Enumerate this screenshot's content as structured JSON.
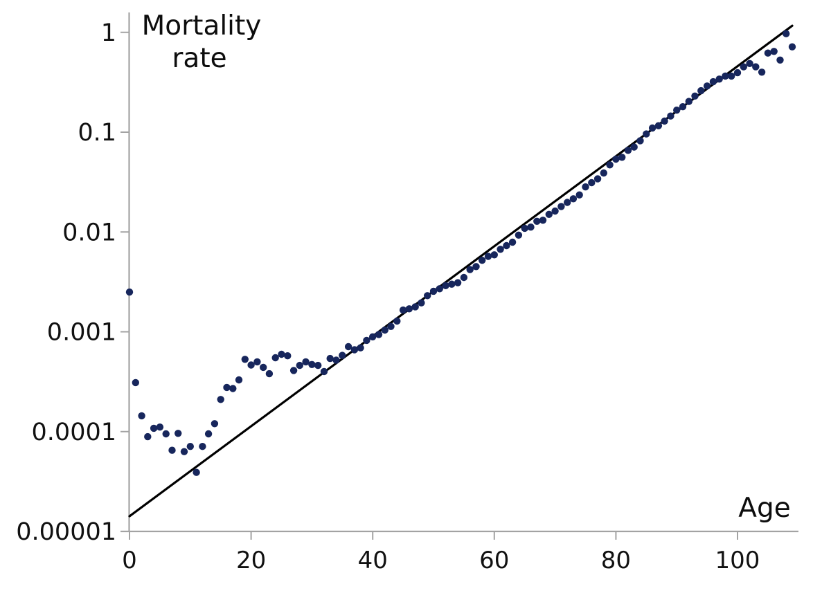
{
  "page": {
    "y_axis_title_line1": "Mortality",
    "y_axis_title_line2": "rate",
    "x_axis_label": "Age"
  },
  "colors": {
    "dot": "#17265c",
    "trend_line": "#000000",
    "axis": "#a3a3a3",
    "text": "#111111",
    "background": "#ffffff"
  },
  "chart_data": {
    "type": "scatter",
    "title": "Mortality rate",
    "xlabel": "Age",
    "ylabel": "Mortality rate",
    "x_scale": "linear",
    "y_scale": "log10",
    "xlim": [
      0,
      113
    ],
    "ylim": [
      1e-05,
      1.3
    ],
    "grid": false,
    "legend": false,
    "x_ticks": [
      0,
      20,
      40,
      60,
      80,
      100
    ],
    "y_ticks": [
      {
        "label": "1",
        "value": 1
      },
      {
        "label": "0.1",
        "value": 0.1
      },
      {
        "label": "0.01",
        "value": 0.01
      },
      {
        "label": "0.001",
        "value": 0.001
      },
      {
        "label": "0.0001",
        "value": 0.0001
      },
      {
        "label": "0.00001",
        "value": 1e-05
      }
    ],
    "series": [
      {
        "name": "mortality-rate-by-age",
        "type": "scatter",
        "color": "#17265c",
        "marker_radius": 5.2,
        "ages": [
          0,
          1,
          2,
          3,
          4,
          5,
          6,
          7,
          8,
          9,
          10,
          11,
          12,
          13,
          14,
          15,
          16,
          17,
          18,
          19,
          20,
          21,
          22,
          23,
          24,
          25,
          26,
          27,
          28,
          29,
          30,
          31,
          32,
          33,
          34,
          35,
          36,
          37,
          38,
          39,
          40,
          41,
          42,
          43,
          44,
          45,
          46,
          47,
          48,
          49,
          50,
          51,
          52,
          53,
          54,
          55,
          56,
          57,
          58,
          59,
          60,
          61,
          62,
          63,
          64,
          65,
          66,
          67,
          68,
          69,
          70,
          71,
          72,
          73,
          74,
          75,
          76,
          77,
          78,
          79,
          80,
          81,
          82,
          83,
          84,
          85,
          86,
          87,
          88,
          89,
          90,
          91,
          92,
          93,
          94,
          95,
          96,
          97,
          98,
          99,
          100,
          101,
          102,
          103,
          104,
          105,
          106,
          107,
          108,
          109
        ],
        "values": [
          0.0025,
          0.00031,
          0.000144,
          8.9e-05,
          0.000108,
          0.000111,
          9.5e-05,
          6.5e-05,
          9.6e-05,
          6.3e-05,
          7.1e-05,
          3.9e-05,
          7.1e-05,
          9.5e-05,
          0.00012,
          0.00021,
          0.000277,
          0.00027,
          0.00033,
          0.00053,
          0.000465,
          0.0005,
          0.00044,
          0.00038,
          0.00055,
          0.000595,
          0.000575,
          0.00041,
          0.00046,
          0.0005,
          0.00047,
          0.00046,
          0.0004,
          0.00054,
          0.00052,
          0.00058,
          0.00071,
          0.00066,
          0.00069,
          0.00082,
          0.00089,
          0.00094,
          0.00104,
          0.00113,
          0.00128,
          0.00165,
          0.0017,
          0.00178,
          0.00195,
          0.0023,
          0.00255,
          0.0027,
          0.0029,
          0.003,
          0.0031,
          0.0035,
          0.0042,
          0.0045,
          0.0052,
          0.0057,
          0.0059,
          0.0067,
          0.0073,
          0.0079,
          0.0093,
          0.0109,
          0.0112,
          0.0128,
          0.0131,
          0.015,
          0.0162,
          0.018,
          0.0198,
          0.0215,
          0.0235,
          0.0283,
          0.0312,
          0.0341,
          0.039,
          0.047,
          0.0537,
          0.056,
          0.0657,
          0.071,
          0.082,
          0.096,
          0.11,
          0.116,
          0.129,
          0.145,
          0.166,
          0.18,
          0.203,
          0.23,
          0.26,
          0.29,
          0.32,
          0.34,
          0.365,
          0.365,
          0.394,
          0.451,
          0.487,
          0.451,
          0.399,
          0.62,
          0.644,
          0.528,
          0.97,
          0.716
        ]
      }
    ],
    "trend_line": {
      "name": "gompertz-fit-line",
      "color": "#000000",
      "width": 3.2,
      "from": {
        "age": 0,
        "rate": 1.42e-05
      },
      "to": {
        "age": 109,
        "rate": 1.165
      }
    }
  }
}
